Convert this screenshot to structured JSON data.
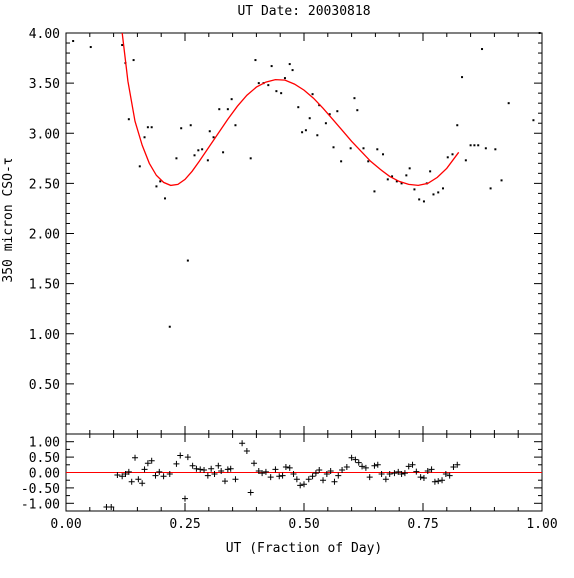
{
  "chart_data": [
    {
      "type": "scatter",
      "title": "UT Date: 20030818",
      "ylabel": "350 micron CSO-τ",
      "xlim": [
        0,
        1
      ],
      "ylim": [
        0,
        4
      ],
      "x_ticks": [
        "0.00",
        "0.25",
        "0.50",
        "0.75",
        "1.00"
      ],
      "y_ticks": [
        "0.50",
        "1.00",
        "1.50",
        "2.00",
        "2.50",
        "3.00",
        "3.50",
        "4.00"
      ],
      "grid": false,
      "series": [
        {
          "kind": "points",
          "color": "#000000",
          "points": [
            [
              0.015,
              3.92
            ],
            [
              0.052,
              3.86
            ],
            [
              0.118,
              3.88
            ],
            [
              0.125,
              3.7
            ],
            [
              0.132,
              3.14
            ],
            [
              0.142,
              3.73
            ],
            [
              0.155,
              2.67
            ],
            [
              0.165,
              2.96
            ],
            [
              0.172,
              3.06
            ],
            [
              0.18,
              3.06
            ],
            [
              0.19,
              2.47
            ],
            [
              0.198,
              2.52
            ],
            [
              0.208,
              2.35
            ],
            [
              0.218,
              1.07
            ],
            [
              0.232,
              2.75
            ],
            [
              0.242,
              3.05
            ],
            [
              0.256,
              1.73
            ],
            [
              0.262,
              3.08
            ],
            [
              0.27,
              2.78
            ],
            [
              0.278,
              2.83
            ],
            [
              0.286,
              2.84
            ],
            [
              0.298,
              2.73
            ],
            [
              0.302,
              3.02
            ],
            [
              0.31,
              2.96
            ],
            [
              0.322,
              3.24
            ],
            [
              0.33,
              2.81
            ],
            [
              0.34,
              3.24
            ],
            [
              0.348,
              3.34
            ],
            [
              0.356,
              3.08
            ],
            [
              0.388,
              2.75
            ],
            [
              0.398,
              3.73
            ],
            [
              0.405,
              3.5
            ],
            [
              0.415,
              3.5
            ],
            [
              0.425,
              3.48
            ],
            [
              0.432,
              3.67
            ],
            [
              0.442,
              3.42
            ],
            [
              0.452,
              3.4
            ],
            [
              0.46,
              3.55
            ],
            [
              0.47,
              3.69
            ],
            [
              0.476,
              3.63
            ],
            [
              0.488,
              3.26
            ],
            [
              0.496,
              3.01
            ],
            [
              0.504,
              3.03
            ],
            [
              0.512,
              3.15
            ],
            [
              0.518,
              3.39
            ],
            [
              0.528,
              2.98
            ],
            [
              0.532,
              3.28
            ],
            [
              0.546,
              3.1
            ],
            [
              0.554,
              3.19
            ],
            [
              0.562,
              2.86
            ],
            [
              0.57,
              3.22
            ],
            [
              0.578,
              2.72
            ],
            [
              0.598,
              2.85
            ],
            [
              0.606,
              3.35
            ],
            [
              0.612,
              3.23
            ],
            [
              0.625,
              2.85
            ],
            [
              0.635,
              2.72
            ],
            [
              0.648,
              2.42
            ],
            [
              0.654,
              2.84
            ],
            [
              0.666,
              2.79
            ],
            [
              0.676,
              2.54
            ],
            [
              0.685,
              2.57
            ],
            [
              0.695,
              2.52
            ],
            [
              0.705,
              2.5
            ],
            [
              0.715,
              2.58
            ],
            [
              0.722,
              2.65
            ],
            [
              0.732,
              2.44
            ],
            [
              0.742,
              2.34
            ],
            [
              0.752,
              2.32
            ],
            [
              0.758,
              2.5
            ],
            [
              0.765,
              2.62
            ],
            [
              0.772,
              2.39
            ],
            [
              0.782,
              2.41
            ],
            [
              0.792,
              2.45
            ],
            [
              0.802,
              2.76
            ],
            [
              0.812,
              2.79
            ],
            [
              0.822,
              3.08
            ],
            [
              0.832,
              3.56
            ],
            [
              0.84,
              2.73
            ],
            [
              0.85,
              2.88
            ],
            [
              0.858,
              2.88
            ],
            [
              0.866,
              2.88
            ],
            [
              0.874,
              3.84
            ],
            [
              0.882,
              2.85
            ],
            [
              0.892,
              2.45
            ],
            [
              0.902,
              2.84
            ],
            [
              0.915,
              2.53
            ],
            [
              0.93,
              3.3
            ],
            [
              0.982,
              3.13
            ],
            [
              0.995,
              4.0
            ]
          ]
        },
        {
          "kind": "fit",
          "color": "#ff0000",
          "points": [
            [
              0.118,
              4.0
            ],
            [
              0.13,
              3.52
            ],
            [
              0.145,
              3.12
            ],
            [
              0.16,
              2.88
            ],
            [
              0.175,
              2.7
            ],
            [
              0.19,
              2.58
            ],
            [
              0.205,
              2.51
            ],
            [
              0.22,
              2.48
            ],
            [
              0.235,
              2.49
            ],
            [
              0.25,
              2.54
            ],
            [
              0.265,
              2.62
            ],
            [
              0.28,
              2.72
            ],
            [
              0.3,
              2.86
            ],
            [
              0.32,
              3.0
            ],
            [
              0.34,
              3.14
            ],
            [
              0.36,
              3.27
            ],
            [
              0.38,
              3.38
            ],
            [
              0.4,
              3.46
            ],
            [
              0.42,
              3.51
            ],
            [
              0.44,
              3.535
            ],
            [
              0.46,
              3.53
            ],
            [
              0.48,
              3.49
            ],
            [
              0.5,
              3.43
            ],
            [
              0.52,
              3.35
            ],
            [
              0.54,
              3.25
            ],
            [
              0.56,
              3.14
            ],
            [
              0.58,
              3.03
            ],
            [
              0.6,
              2.92
            ],
            [
              0.62,
              2.82
            ],
            [
              0.64,
              2.72
            ],
            [
              0.66,
              2.64
            ],
            [
              0.68,
              2.57
            ],
            [
              0.7,
              2.52
            ],
            [
              0.72,
              2.49
            ],
            [
              0.74,
              2.48
            ],
            [
              0.76,
              2.5
            ],
            [
              0.78,
              2.56
            ],
            [
              0.8,
              2.65
            ],
            [
              0.825,
              2.81
            ]
          ]
        }
      ]
    },
    {
      "type": "scatter",
      "xlabel": "UT (Fraction of Day)",
      "ylabel": "",
      "xlim": [
        0,
        1
      ],
      "ylim": [
        -1.25,
        1.25
      ],
      "x_ticks": [
        "0.00",
        "0.25",
        "0.50",
        "0.75",
        "1.00"
      ],
      "y_ticks": [
        "1.00",
        "0.50",
        "0.00",
        "-0.50",
        "-1.00"
      ],
      "reference_line": 0,
      "reference_color": "#ff0000",
      "series": [
        {
          "kind": "residuals",
          "color": "#000000",
          "points": [
            [
              0.085,
              -1.12
            ],
            [
              0.095,
              -1.12
            ],
            [
              0.108,
              -0.08
            ],
            [
              0.118,
              -0.12
            ],
            [
              0.125,
              -0.05
            ],
            [
              0.132,
              0.02
            ],
            [
              0.138,
              -0.3
            ],
            [
              0.145,
              0.48
            ],
            [
              0.152,
              -0.22
            ],
            [
              0.16,
              -0.35
            ],
            [
              0.165,
              0.1
            ],
            [
              0.172,
              0.3
            ],
            [
              0.18,
              0.38
            ],
            [
              0.188,
              -0.1
            ],
            [
              0.196,
              0.02
            ],
            [
              0.205,
              -0.12
            ],
            [
              0.218,
              -0.05
            ],
            [
              0.232,
              0.28
            ],
            [
              0.24,
              0.55
            ],
            [
              0.25,
              -0.85
            ],
            [
              0.256,
              0.5
            ],
            [
              0.266,
              0.22
            ],
            [
              0.274,
              0.12
            ],
            [
              0.282,
              0.1
            ],
            [
              0.29,
              0.08
            ],
            [
              0.298,
              -0.1
            ],
            [
              0.305,
              0.12
            ],
            [
              0.312,
              -0.05
            ],
            [
              0.32,
              0.22
            ],
            [
              0.326,
              0.05
            ],
            [
              0.334,
              -0.28
            ],
            [
              0.34,
              0.1
            ],
            [
              0.346,
              0.12
            ],
            [
              0.356,
              -0.22
            ],
            [
              0.37,
              0.95
            ],
            [
              0.38,
              0.7
            ],
            [
              0.388,
              -0.65
            ],
            [
              0.395,
              0.3
            ],
            [
              0.405,
              0.05
            ],
            [
              0.412,
              -0.02
            ],
            [
              0.42,
              0.02
            ],
            [
              0.43,
              -0.15
            ],
            [
              0.44,
              0.1
            ],
            [
              0.448,
              -0.12
            ],
            [
              0.455,
              -0.1
            ],
            [
              0.462,
              0.18
            ],
            [
              0.47,
              0.15
            ],
            [
              0.478,
              -0.05
            ],
            [
              0.485,
              -0.22
            ],
            [
              0.492,
              -0.42
            ],
            [
              0.5,
              -0.38
            ],
            [
              0.51,
              -0.22
            ],
            [
              0.518,
              -0.12
            ],
            [
              0.525,
              -0.02
            ],
            [
              0.532,
              0.08
            ],
            [
              0.54,
              -0.25
            ],
            [
              0.548,
              -0.05
            ],
            [
              0.556,
              0.05
            ],
            [
              0.564,
              -0.3
            ],
            [
              0.572,
              -0.1
            ],
            [
              0.58,
              0.08
            ],
            [
              0.59,
              0.18
            ],
            [
              0.6,
              0.48
            ],
            [
              0.608,
              0.42
            ],
            [
              0.615,
              0.32
            ],
            [
              0.622,
              0.2
            ],
            [
              0.63,
              0.15
            ],
            [
              0.638,
              -0.15
            ],
            [
              0.648,
              0.22
            ],
            [
              0.655,
              0.25
            ],
            [
              0.663,
              -0.05
            ],
            [
              0.672,
              -0.22
            ],
            [
              0.68,
              -0.05
            ],
            [
              0.69,
              -0.02
            ],
            [
              0.698,
              0.02
            ],
            [
              0.705,
              -0.05
            ],
            [
              0.712,
              -0.02
            ],
            [
              0.72,
              0.2
            ],
            [
              0.728,
              0.25
            ],
            [
              0.736,
              0.03
            ],
            [
              0.745,
              -0.15
            ],
            [
              0.752,
              -0.18
            ],
            [
              0.76,
              0.05
            ],
            [
              0.768,
              0.1
            ],
            [
              0.775,
              -0.3
            ],
            [
              0.782,
              -0.28
            ],
            [
              0.79,
              -0.25
            ],
            [
              0.798,
              -0.05
            ],
            [
              0.806,
              -0.1
            ],
            [
              0.814,
              0.18
            ],
            [
              0.822,
              0.25
            ]
          ]
        }
      ]
    }
  ]
}
